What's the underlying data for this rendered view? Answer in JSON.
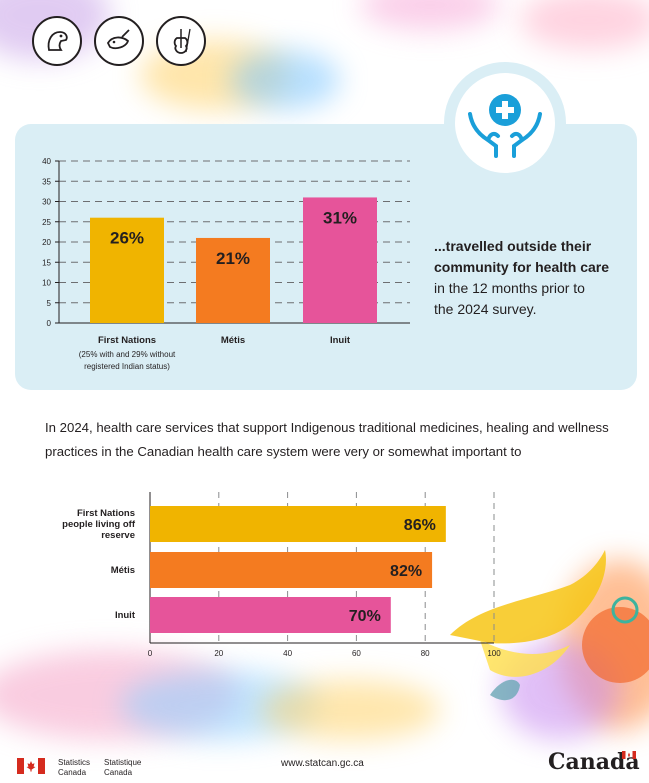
{
  "header_icons": [
    "eagle-icon",
    "whale-icon",
    "fiddle-icon"
  ],
  "chart_data": [
    {
      "type": "bar",
      "categories": [
        "First Nations",
        "Métis",
        "Inuit"
      ],
      "category_notes": [
        "(25% with and 29% without",
        "registered Indian status)"
      ],
      "values": [
        26,
        21,
        31
      ],
      "data_labels": [
        "26%",
        "21%",
        "31%"
      ],
      "ylim": [
        0,
        40
      ],
      "yticks": [
        0,
        5,
        10,
        15,
        20,
        25,
        30,
        35,
        40
      ],
      "colors": [
        "#f0b400",
        "#f47b20",
        "#e6549a"
      ],
      "grid": true
    },
    {
      "type": "bar",
      "orientation": "horizontal",
      "categories": [
        "First Nations people living off reserve",
        "Métis",
        "Inuit"
      ],
      "category_lines": [
        [
          "First Nations",
          "people living off",
          "reserve"
        ],
        [
          "Métis"
        ],
        [
          "Inuit"
        ]
      ],
      "values": [
        86,
        82,
        70
      ],
      "data_labels": [
        "86%",
        "82%",
        "70%"
      ],
      "xlim": [
        0,
        100
      ],
      "xticks": [
        0,
        20,
        40,
        60,
        80,
        100
      ],
      "colors": [
        "#f0b400",
        "#f47b20",
        "#e6549a"
      ],
      "grid": true
    }
  ],
  "panel_text": {
    "bold_line1": "...travelled outside their",
    "bold_line2": "community for health care",
    "line3": "in the 12 months prior to",
    "line4": "the 2024 survey."
  },
  "intro_text": "In 2024, health care services that support Indigenous traditional medicines, healing and wellness practices in the Canadian health care system were very or somewhat important to",
  "footer": {
    "sc_en_1": "Statistics",
    "sc_en_2": "Canada",
    "sc_fr_1": "Statistique",
    "sc_fr_2": "Canada",
    "url": "www.statcan.gc.ca",
    "wordmark": "Canada",
    "colors": {
      "flag_red": "#d52b1e"
    }
  }
}
